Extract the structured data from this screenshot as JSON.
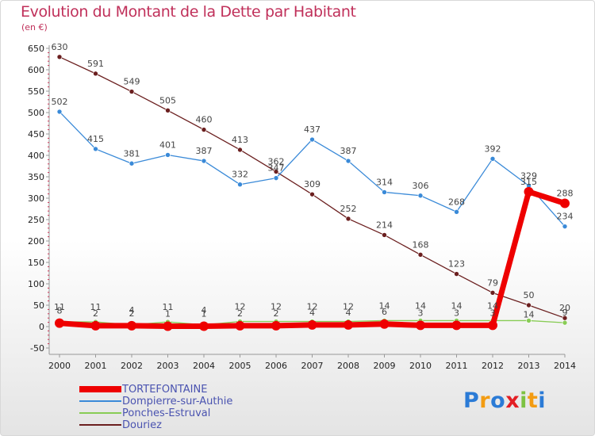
{
  "title": "Evolution du Montant de la Dette par Habitant",
  "unit_label": "(en €)",
  "brand": "Proxiti",
  "brand_colors": [
    "#2b7bd6",
    "#f39c12",
    "#2b7bd6",
    "#e31e24",
    "#7cc242",
    "#f39c12",
    "#2b7bd6"
  ],
  "chart_data": {
    "type": "line",
    "x": [
      "2000",
      "2001",
      "2002",
      "2003",
      "2004",
      "2005",
      "2006",
      "2007",
      "2008",
      "2009",
      "2010",
      "2011",
      "2012",
      "2013",
      "2014"
    ],
    "ylim": [
      -50,
      650
    ],
    "yticks": [
      "-50",
      "0",
      "50",
      "100",
      "150",
      "200",
      "250",
      "300",
      "350",
      "400",
      "450",
      "500",
      "550",
      "600",
      "650"
    ],
    "grid": false,
    "legend_position": "bottom-left",
    "series": [
      {
        "name": "Douriez",
        "color": "#6b1f1f",
        "values": [
          630,
          591,
          549,
          505,
          460,
          413,
          362,
          309,
          252,
          214,
          168,
          123,
          79,
          50,
          20
        ],
        "labels": [
          "630",
          "591",
          "549",
          "505",
          "460",
          "413",
          "362",
          "309",
          "252",
          "214",
          "168",
          "123",
          "79",
          "50",
          "20"
        ]
      },
      {
        "name": "Dompierre-sur-Authie",
        "color": "#3a8ad8",
        "values": [
          502,
          415,
          381,
          401,
          387,
          332,
          347,
          437,
          387,
          314,
          306,
          268,
          392,
          329,
          234
        ],
        "labels": [
          "502",
          "415",
          "381",
          "401",
          "387",
          "332",
          "347",
          "437",
          "387",
          "314",
          "306",
          "268",
          "392",
          "329",
          "234"
        ]
      },
      {
        "name": "Ponches-Estruval",
        "color": "#88cc55",
        "values": [
          11,
          11,
          4,
          11,
          4,
          12,
          12,
          12,
          12,
          14,
          14,
          14,
          14,
          14,
          9
        ],
        "labels": [
          "11",
          "11",
          "4",
          "11",
          "4",
          "12",
          "12",
          "12",
          "12",
          "14",
          "14",
          "14",
          "14",
          "14",
          "9"
        ]
      },
      {
        "name": "TORTEFONTAINE",
        "color": "#ee0000",
        "values": [
          8,
          2,
          2,
          1,
          1,
          2,
          2,
          4,
          4,
          6,
          3,
          3,
          3,
          315,
          288
        ],
        "labels": [
          "8",
          "2",
          "2",
          "1",
          "1",
          "2",
          "2",
          "4",
          "4",
          "6",
          "3",
          "3",
          "3",
          "315",
          "288"
        ]
      }
    ]
  }
}
